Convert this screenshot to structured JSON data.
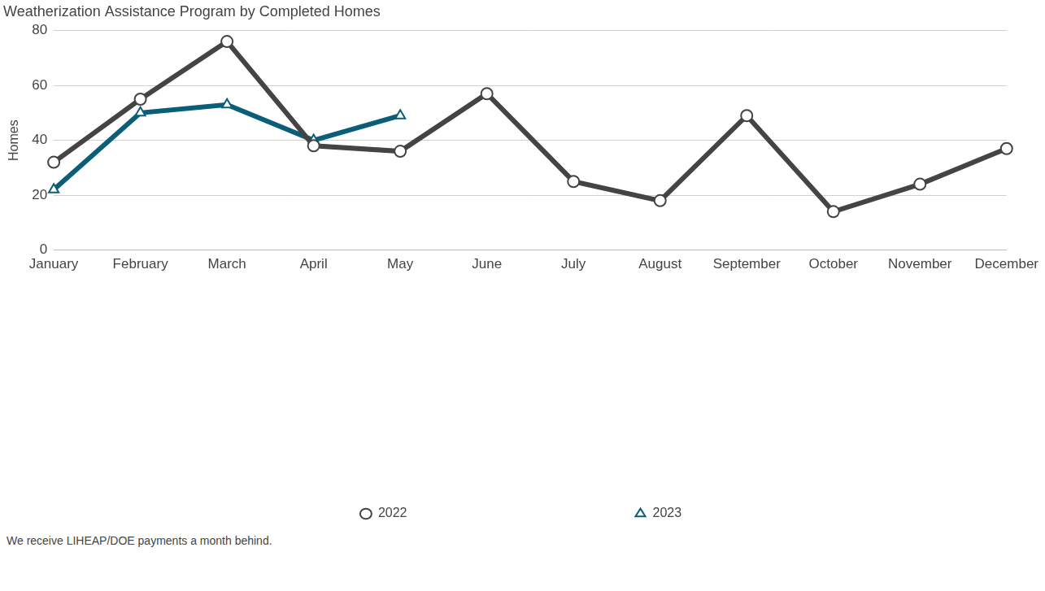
{
  "chart_data": {
    "type": "line",
    "title": "Weatherization Assistance Program by Completed Homes",
    "y_label": "Homes",
    "caption": "We receive LIHEAP/DOE payments a month behind.",
    "categories": [
      "January",
      "February",
      "March",
      "April",
      "May",
      "June",
      "July",
      "August",
      "September",
      "October",
      "November",
      "December"
    ],
    "series": [
      {
        "name": "2022",
        "color": "#444444",
        "marker": "circle",
        "line_style": "solid",
        "values": [
          32,
          55,
          76,
          38,
          36,
          57,
          25,
          18,
          49,
          14,
          24,
          37
        ]
      },
      {
        "name": "2023",
        "color": "#0b5e78",
        "marker": "triangle",
        "line_style": "solid",
        "values": [
          22,
          50,
          53,
          40,
          49,
          null,
          null,
          null,
          null,
          null,
          null,
          null
        ]
      }
    ],
    "ylim": [
      0,
      80
    ],
    "yticks": [
      0,
      20,
      40,
      60,
      80
    ],
    "grid": true,
    "legend": "bottom"
  }
}
